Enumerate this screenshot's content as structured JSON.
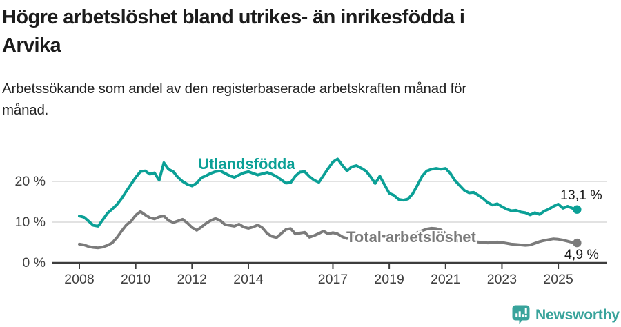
{
  "header": {
    "title_lines": [
      "Högre arbetslöshet bland utrikes- än inrikesfödda i",
      "Arvika"
    ],
    "subtitle_lines": [
      "Arbetssökande som andel av den registerbaserade arbetskraften månad för",
      "månad."
    ]
  },
  "branding": {
    "logo_text": "Newsworthy",
    "logo_color": "#38a39b",
    "logo_icon": "bar-chart-speech-bubble-icon"
  },
  "colors": {
    "series_utlandsfodda": "#0ba096",
    "series_total": "#7b7b7b",
    "gridline": "#d8d8d8",
    "axis": "#3d3d3d",
    "axis_text": "#3f3f3f",
    "title_text": "#1c1c1c"
  },
  "chart_data": {
    "type": "line",
    "title": "Högre arbetslöshet bland utrikes- än inrikesfödda i Arvika",
    "subtitle": "Arbetssökande som andel av den registerbaserade arbetskraften månad för månad.",
    "xlabel": "",
    "ylabel": "",
    "ylim": [
      0,
      27
    ],
    "grid": "horizontal",
    "legend": "inline-labels",
    "x_unit": "year",
    "x_start_year": 2008.0,
    "x_step_years": 0.16667,
    "x_end_year": 2025.667,
    "y_ticks": [
      {
        "value": 0,
        "label": "0 %"
      },
      {
        "value": 10,
        "label": "10 %"
      },
      {
        "value": 20,
        "label": "20 %"
      }
    ],
    "x_ticks": [
      {
        "year": 2008,
        "label": "2008"
      },
      {
        "year": 2010,
        "label": "2010"
      },
      {
        "year": 2012,
        "label": "2012"
      },
      {
        "year": 2014,
        "label": "2014"
      },
      {
        "year": 2017,
        "label": "2017"
      },
      {
        "year": 2019,
        "label": "2019"
      },
      {
        "year": 2021,
        "label": "2021"
      },
      {
        "year": 2023,
        "label": "2023"
      },
      {
        "year": 2025,
        "label": "2025"
      }
    ],
    "series": [
      {
        "name": "Utlandsfödda",
        "color": "#0ba096",
        "end_label": "13,1 %",
        "end_value": 13.1,
        "values": [
          11.5,
          11.2,
          10.2,
          9.2,
          9.0,
          10.6,
          12.2,
          13.2,
          14.3,
          15.8,
          17.6,
          19.3,
          21.0,
          22.4,
          22.6,
          21.8,
          22.1,
          20.3,
          24.6,
          23.0,
          22.4,
          21.0,
          20.0,
          19.3,
          18.9,
          19.6,
          20.9,
          21.4,
          22.0,
          22.4,
          22.6,
          22.0,
          21.4,
          21.0,
          21.6,
          22.1,
          22.4,
          22.0,
          21.6,
          21.9,
          22.2,
          21.8,
          21.2,
          20.4,
          19.6,
          19.7,
          21.3,
          22.3,
          22.4,
          21.2,
          20.3,
          19.8,
          21.5,
          23.2,
          24.8,
          25.5,
          24.0,
          22.6,
          23.6,
          23.9,
          23.3,
          22.6,
          21.2,
          19.5,
          21.3,
          19.2,
          17.1,
          16.6,
          15.6,
          15.4,
          15.7,
          17.0,
          19.1,
          21.3,
          22.6,
          23.0,
          23.2,
          23.0,
          23.2,
          22.0,
          20.2,
          19.0,
          17.8,
          17.2,
          17.3,
          16.6,
          15.8,
          14.8,
          14.2,
          14.5,
          13.8,
          13.2,
          12.8,
          12.9,
          12.5,
          12.3,
          11.8,
          12.3,
          11.9,
          12.7,
          13.2,
          13.9,
          14.4,
          13.4,
          13.9,
          13.4,
          13.1
        ]
      },
      {
        "name": "Total arbetslöshet",
        "color": "#7b7b7b",
        "end_label": "4,9 %",
        "end_value": 4.9,
        "values": [
          4.6,
          4.4,
          4.0,
          3.8,
          3.7,
          3.9,
          4.3,
          4.9,
          6.2,
          7.8,
          9.3,
          10.2,
          11.7,
          12.6,
          11.8,
          11.1,
          10.8,
          11.3,
          11.5,
          10.4,
          9.9,
          10.3,
          10.7,
          9.8,
          8.7,
          8.0,
          8.8,
          9.7,
          10.4,
          10.9,
          10.4,
          9.4,
          9.2,
          9.0,
          9.5,
          8.8,
          8.5,
          8.8,
          9.3,
          8.6,
          7.2,
          6.5,
          6.2,
          7.2,
          8.2,
          8.4,
          7.1,
          7.3,
          7.5,
          6.3,
          6.7,
          7.2,
          7.8,
          7.1,
          7.4,
          7.1,
          6.4,
          6.0,
          6.3,
          6.6,
          6.6,
          6.8,
          6.9,
          6.9,
          6.7,
          6.5,
          6.3,
          6.1,
          6.0,
          6.1,
          6.4,
          6.8,
          7.4,
          7.9,
          8.3,
          8.5,
          8.4,
          8.1,
          7.2,
          6.3,
          5.6,
          5.3,
          5.2,
          5.3,
          5.2,
          5.1,
          5.0,
          4.9,
          5.0,
          5.1,
          5.0,
          4.8,
          4.6,
          4.5,
          4.4,
          4.3,
          4.4,
          4.8,
          5.2,
          5.5,
          5.7,
          5.9,
          5.8,
          5.6,
          5.3,
          5.0,
          4.9
        ]
      }
    ]
  }
}
